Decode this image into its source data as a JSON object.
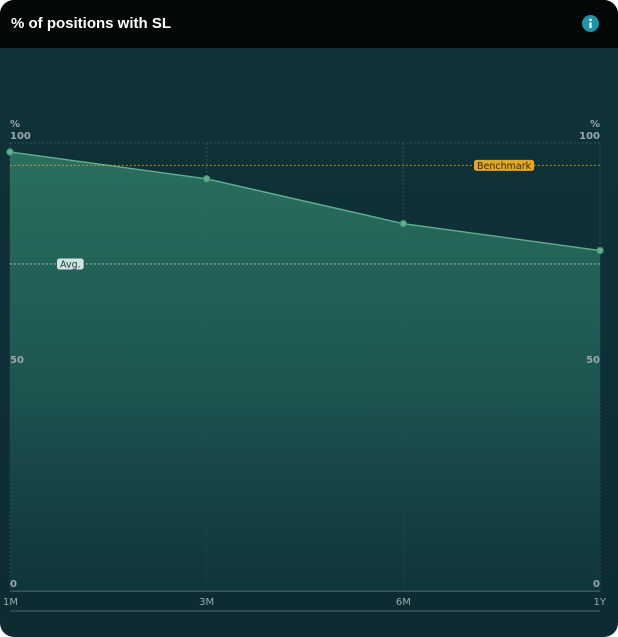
{
  "header": {
    "title": "% of positions with SL",
    "info_icon": "info-icon"
  },
  "colors": {
    "background": "#0e3036",
    "header": "#030708",
    "area_fill": "#26695d",
    "line": "#5fb08f",
    "benchmark": "#e3a726",
    "average": "#cfe3df"
  },
  "chart_data": {
    "type": "area",
    "categories": [
      "1M",
      "3M",
      "6M",
      "1Y"
    ],
    "values": [
      98,
      92,
      82,
      76
    ],
    "ylim": [
      0,
      100
    ],
    "y_ticks": [
      0,
      50,
      100
    ],
    "y_gridlines": [
      0,
      25,
      50,
      75,
      100
    ],
    "y_unit_left": "%",
    "y_unit_right": "%",
    "grid": true,
    "reference_lines": [
      {
        "label": "Benchmark",
        "value": 95,
        "label_position": "right"
      },
      {
        "label": "Avg.",
        "value": 73,
        "label_position": "left"
      }
    ]
  }
}
